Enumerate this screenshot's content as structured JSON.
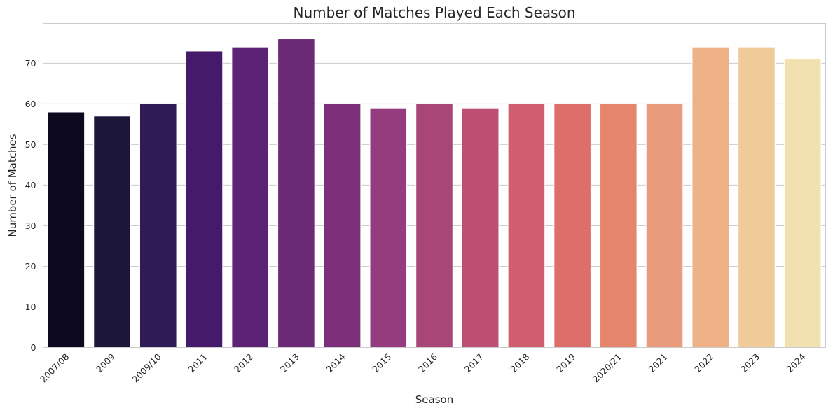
{
  "chart_data": {
    "type": "bar",
    "title": "Number of Matches Played Each Season",
    "xlabel": "Season",
    "ylabel": "Number of Matches",
    "categories": [
      "2007/08",
      "2009",
      "2009/10",
      "2011",
      "2012",
      "2013",
      "2014",
      "2015",
      "2016",
      "2017",
      "2018",
      "2019",
      "2020/21",
      "2021",
      "2022",
      "2023",
      "2024"
    ],
    "values": [
      58,
      57,
      60,
      73,
      74,
      76,
      60,
      59,
      60,
      59,
      60,
      60,
      60,
      60,
      74,
      74,
      71
    ],
    "colors": [
      "#0d0a1f",
      "#1c1639",
      "#2f1b55",
      "#461a6a",
      "#5b2275",
      "#6b2a75",
      "#7e2f7a",
      "#943c7e",
      "#a84676",
      "#bd4f72",
      "#cf5f70",
      "#de6e6a",
      "#e5856b",
      "#e99c7b",
      "#efb287",
      "#f0cb9a",
      "#f2e1b0"
    ],
    "yticks": [
      0,
      10,
      20,
      30,
      40,
      50,
      60,
      70
    ],
    "ylim": [
      0,
      79.8
    ],
    "grid": "y",
    "legend": "none"
  }
}
